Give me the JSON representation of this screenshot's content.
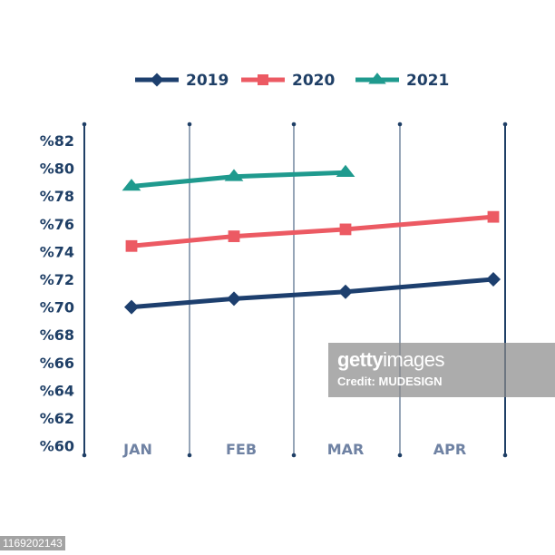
{
  "chart_data": {
    "type": "line",
    "title": "",
    "xlabel": "",
    "ylabel": "",
    "categories": [
      "JAN",
      "FEB",
      "MAR",
      "APR"
    ],
    "series": [
      {
        "name": "2019",
        "color": "#1d3f6e",
        "marker": "diamond",
        "values": [
          70.0,
          70.6,
          71.1,
          72.0
        ]
      },
      {
        "name": "2020",
        "color": "#ec5a63",
        "marker": "square",
        "values": [
          74.4,
          75.1,
          75.6,
          76.5
        ]
      },
      {
        "name": "2021",
        "color": "#1f9a8e",
        "marker": "triangle",
        "values": [
          78.7,
          79.4,
          79.7,
          null
        ]
      }
    ],
    "y_ticks": [
      "%82",
      "%80",
      "%78",
      "%76",
      "%74",
      "%72",
      "%70",
      "%68",
      "%66",
      "%64",
      "%62",
      "%60"
    ],
    "ylim": [
      60,
      82
    ],
    "grid": "vertical separators only",
    "legend_position": "top"
  },
  "legend": {
    "items": [
      {
        "label": "2019",
        "color": "#1d3f6e",
        "marker": "diamond"
      },
      {
        "label": "2020",
        "color": "#ec5a63",
        "marker": "square"
      },
      {
        "label": "2021",
        "color": "#1f9a8e",
        "marker": "triangle"
      }
    ]
  },
  "watermark": {
    "brand_bold": "getty",
    "brand_light": "images",
    "credit": "Credit: MUDESIGN"
  },
  "image_id": "1169202143"
}
